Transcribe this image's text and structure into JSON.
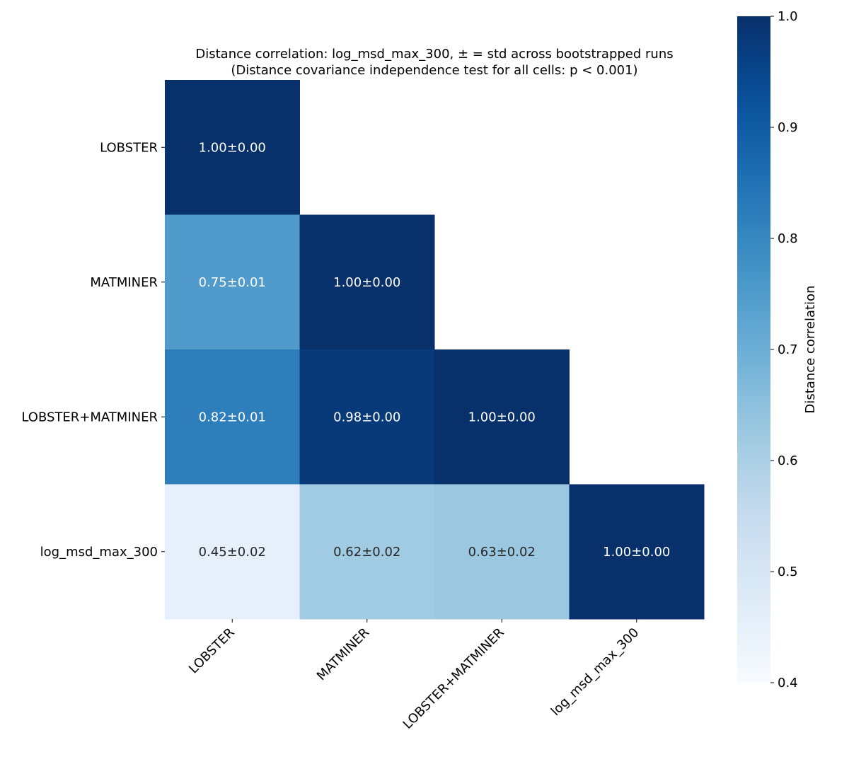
{
  "chart_data": {
    "type": "heatmap",
    "title": "Distance correlation: log_msd_max_300, ± = std across bootstrapped runs",
    "subtitle": "(Distance covariance independence test for all cells: p < 0.001)",
    "x_labels": [
      "LOBSTER",
      "MATMINER",
      "LOBSTER+MATMINER",
      "log_msd_max_300"
    ],
    "y_labels": [
      "LOBSTER",
      "MATMINER",
      "LOBSTER+MATMINER",
      "log_msd_max_300"
    ],
    "mask": "upper triangle (above diagonal) hidden",
    "cells": [
      {
        "row": 0,
        "col": 0,
        "value": 1.0,
        "label": "1.00±0.00"
      },
      {
        "row": 1,
        "col": 0,
        "value": 0.75,
        "label": "0.75±0.01"
      },
      {
        "row": 1,
        "col": 1,
        "value": 1.0,
        "label": "1.00±0.00"
      },
      {
        "row": 2,
        "col": 0,
        "value": 0.82,
        "label": "0.82±0.01"
      },
      {
        "row": 2,
        "col": 1,
        "value": 0.98,
        "label": "0.98±0.00"
      },
      {
        "row": 2,
        "col": 2,
        "value": 1.0,
        "label": "1.00±0.00"
      },
      {
        "row": 3,
        "col": 0,
        "value": 0.45,
        "label": "0.45±0.02"
      },
      {
        "row": 3,
        "col": 1,
        "value": 0.62,
        "label": "0.62±0.02"
      },
      {
        "row": 3,
        "col": 2,
        "value": 0.63,
        "label": "0.63±0.02"
      },
      {
        "row": 3,
        "col": 3,
        "value": 1.0,
        "label": "1.00±0.00"
      }
    ],
    "colormap": "Blues",
    "colorbar": {
      "label": "Distance correlation",
      "range": [
        0.4,
        1.0
      ],
      "ticks": [
        "0.4",
        "0.5",
        "0.6",
        "0.7",
        "0.8",
        "0.9",
        "1.0"
      ]
    },
    "text_colors": {
      "light": "#ffffff",
      "dark": "#262626"
    }
  }
}
